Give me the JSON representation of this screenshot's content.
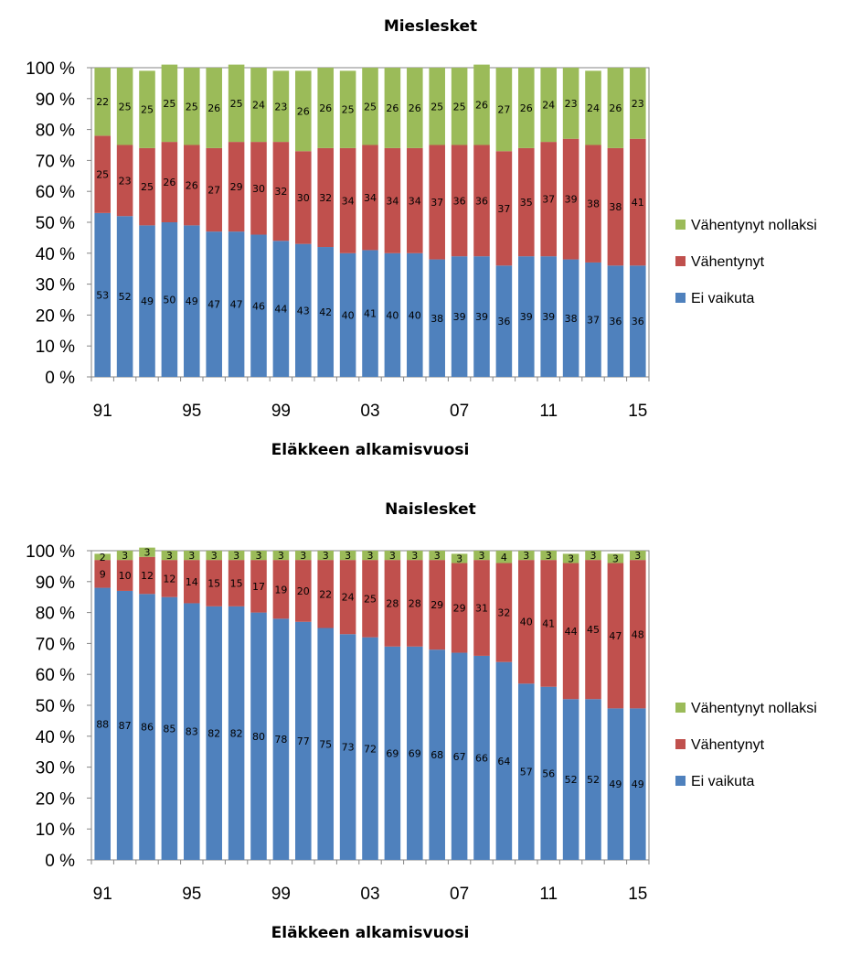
{
  "colors": {
    "Ei vaikuta": "#4f81bd",
    "Vähentynyt": "#c0504d",
    "Vähentynyt nollaksi": "#9bbb59"
  },
  "chart_data": [
    {
      "type": "bar",
      "stacked": true,
      "percent_stacked": true,
      "title": "Mieslesket",
      "xlabel": "Eläkkeen alkamisvuosi",
      "ylabel": "",
      "categories": [
        "91",
        "92",
        "93",
        "94",
        "95",
        "96",
        "97",
        "98",
        "99",
        "00",
        "01",
        "02",
        "03",
        "04",
        "05",
        "06",
        "07",
        "08",
        "09",
        "10",
        "11",
        "12",
        "13",
        "14",
        "15"
      ],
      "x_tick_labels": [
        "91",
        "95",
        "99",
        "03",
        "07",
        "11",
        "15"
      ],
      "y_tick_labels": [
        "0 %",
        "10 %",
        "20 %",
        "30 %",
        "40 %",
        "50 %",
        "60 %",
        "70 %",
        "80 %",
        "90 %",
        "100 %"
      ],
      "ylim": [
        0,
        100
      ],
      "legend_position": "right",
      "legend_order": [
        "Vähentynyt nollaksi",
        "Vähentynyt",
        "Ei vaikuta"
      ],
      "series": [
        {
          "name": "Ei vaikuta",
          "values": [
            53,
            52,
            49,
            50,
            49,
            47,
            47,
            46,
            44,
            43,
            42,
            40,
            41,
            40,
            40,
            38,
            39,
            39,
            36,
            39,
            39,
            38,
            37,
            36,
            36
          ]
        },
        {
          "name": "Vähentynyt",
          "values": [
            25,
            23,
            25,
            26,
            26,
            27,
            29,
            30,
            32,
            30,
            32,
            34,
            34,
            34,
            34,
            37,
            36,
            36,
            37,
            35,
            37,
            39,
            38,
            38,
            41
          ]
        },
        {
          "name": "Vähentynyt nollaksi",
          "values": [
            22,
            25,
            25,
            25,
            25,
            26,
            25,
            24,
            23,
            26,
            26,
            25,
            25,
            26,
            26,
            25,
            25,
            26,
            27,
            26,
            24,
            23,
            24,
            26,
            23
          ]
        }
      ]
    },
    {
      "type": "bar",
      "stacked": true,
      "percent_stacked": true,
      "title": "Naislesket",
      "xlabel": "Eläkkeen alkamisvuosi",
      "ylabel": "",
      "categories": [
        "91",
        "92",
        "93",
        "94",
        "95",
        "96",
        "97",
        "98",
        "99",
        "00",
        "01",
        "02",
        "03",
        "04",
        "05",
        "06",
        "07",
        "08",
        "09",
        "10",
        "11",
        "12",
        "13",
        "14",
        "15"
      ],
      "x_tick_labels": [
        "91",
        "95",
        "99",
        "03",
        "07",
        "11",
        "15"
      ],
      "y_tick_labels": [
        "0 %",
        "10 %",
        "20 %",
        "30 %",
        "40 %",
        "50 %",
        "60 %",
        "70 %",
        "80 %",
        "90 %",
        "100 %"
      ],
      "ylim": [
        0,
        100
      ],
      "legend_position": "right",
      "legend_order": [
        "Vähentynyt nollaksi",
        "Vähentynyt",
        "Ei vaikuta"
      ],
      "series": [
        {
          "name": "Ei vaikuta",
          "values": [
            88,
            87,
            86,
            85,
            83,
            82,
            82,
            80,
            78,
            77,
            75,
            73,
            72,
            69,
            69,
            68,
            67,
            66,
            64,
            57,
            56,
            52,
            52,
            49,
            49
          ]
        },
        {
          "name": "Vähentynyt",
          "values": [
            9,
            10,
            12,
            12,
            14,
            15,
            15,
            17,
            19,
            20,
            22,
            24,
            25,
            28,
            28,
            29,
            29,
            31,
            32,
            40,
            41,
            44,
            45,
            47,
            48
          ]
        },
        {
          "name": "Vähentynyt nollaksi",
          "values": [
            2,
            3,
            3,
            3,
            3,
            3,
            3,
            3,
            3,
            3,
            3,
            3,
            3,
            3,
            3,
            3,
            3,
            3,
            4,
            3,
            3,
            3,
            3,
            3,
            3
          ]
        }
      ]
    }
  ]
}
